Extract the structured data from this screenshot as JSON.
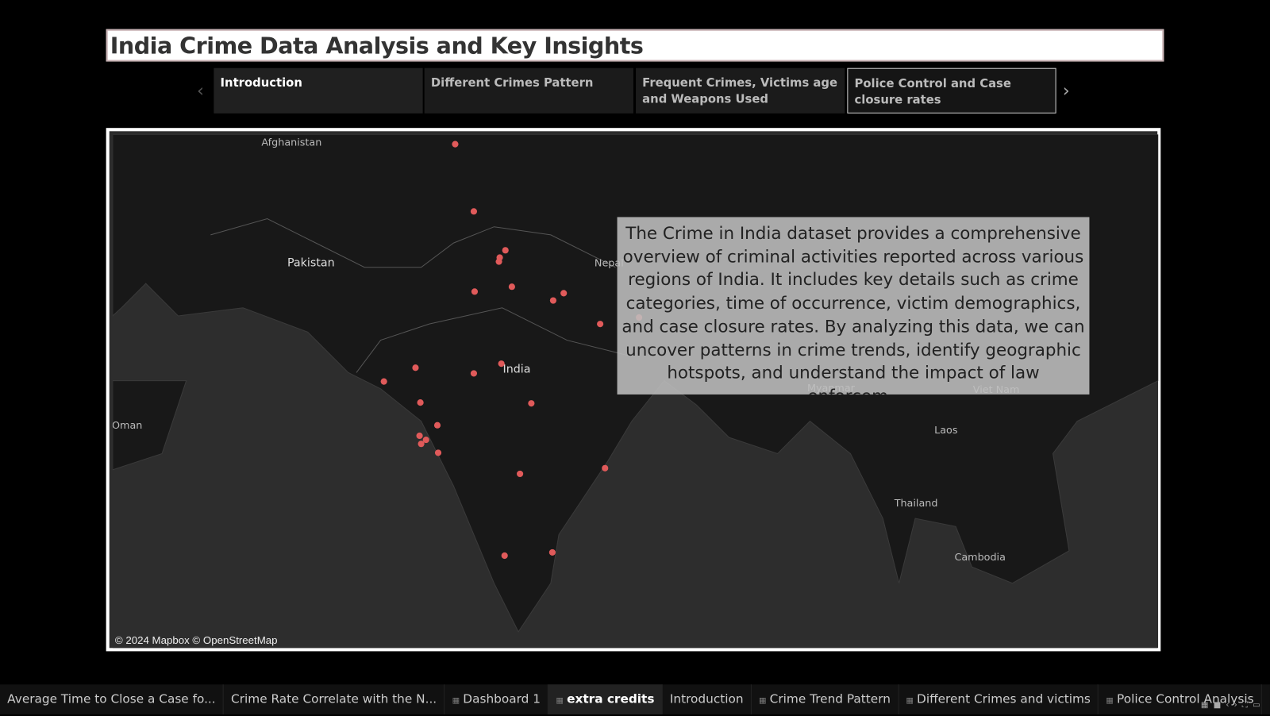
{
  "header": {
    "title": "India Crime Data Analysis and Key Insights"
  },
  "story_points": [
    "Introduction",
    "Different Crimes Pattern",
    "Frequent Crimes, Victims age and Weapons Used",
    "Police Control and Case closure rates"
  ],
  "map": {
    "labels": [
      "Afghanistan",
      "Pakistan",
      "Nepal",
      "India",
      "Oman",
      "Myanmar",
      "Viet Nam",
      "Laos",
      "Thailand",
      "Cambodia"
    ],
    "attribution": "© 2024 Mapbox © OpenStreetMap"
  },
  "text_box": "The Crime in India dataset provides a comprehensive overview of criminal activities reported across various regions of India. It includes key details such as crime categories, time of occurrence, victim demographics, and case closure rates. By analyzing this data, we can uncover patterns in crime trends, identify geographic hotspots, and understand the impact of law enforcem..",
  "sheet_tabs": [
    "Average Time to Close a Case fo...",
    "Crime Rate Correlate with the N...",
    "Dashboard 1",
    "extra credits",
    "Introduction",
    "Crime Trend Pattern",
    "Different Crimes and victims",
    "Police Control Analysis"
  ]
}
